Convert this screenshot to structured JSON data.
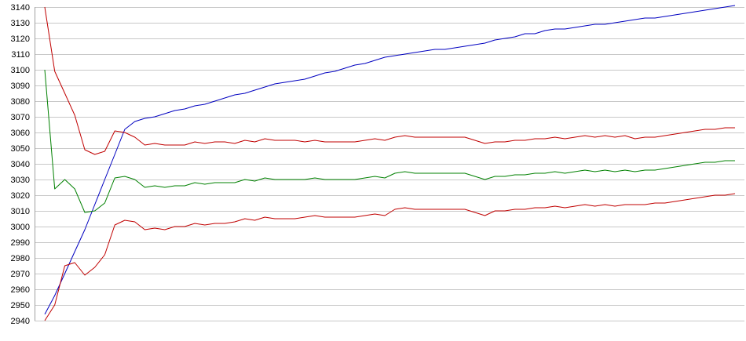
{
  "chart_data": {
    "type": "line",
    "title": "",
    "xlabel": "",
    "ylabel": "",
    "ylim": [
      2940,
      3140
    ],
    "yticks": [
      2940,
      2950,
      2960,
      2970,
      2980,
      2990,
      3000,
      3010,
      3020,
      3030,
      3040,
      3050,
      3060,
      3070,
      3080,
      3090,
      3100,
      3110,
      3120,
      3130,
      3140
    ],
    "grid": true,
    "legend": "none",
    "x": [
      0,
      1,
      2,
      3,
      4,
      5,
      6,
      7,
      8,
      9,
      10,
      11,
      12,
      13,
      14,
      15,
      16,
      17,
      18,
      19,
      20,
      21,
      22,
      23,
      24,
      25,
      26,
      27,
      28,
      29,
      30,
      31,
      32,
      33,
      34,
      35,
      36,
      37,
      38,
      39,
      40,
      41,
      42,
      43,
      44,
      45,
      46,
      47,
      48,
      49,
      50,
      51,
      52,
      53,
      54,
      55,
      56,
      57,
      58,
      59,
      60,
      61,
      62,
      63,
      64,
      65,
      66,
      67,
      68,
      69
    ],
    "series": [
      {
        "color": "#0000c0",
        "values": [
          2944,
          2956,
          2970,
          2984,
          2998,
          3014,
          3030,
          3046,
          3062,
          3067,
          3069,
          3070,
          3072,
          3074,
          3075,
          3077,
          3078,
          3080,
          3082,
          3084,
          3085,
          3087,
          3089,
          3091,
          3092,
          3093,
          3094,
          3096,
          3098,
          3099,
          3101,
          3103,
          3104,
          3106,
          3108,
          3109,
          3110,
          3111,
          3112,
          3113,
          3113,
          3114,
          3115,
          3116,
          3117,
          3119,
          3120,
          3121,
          3123,
          3123,
          3125,
          3126,
          3126,
          3127,
          3128,
          3129,
          3129,
          3130,
          3131,
          3132,
          3133,
          3133,
          3134,
          3135,
          3136,
          3137,
          3138,
          3139,
          3140,
          3141
        ]
      },
      {
        "color": "#c00000",
        "values": [
          3140,
          3099,
          3085,
          3071,
          3049,
          3046,
          3048,
          3061,
          3060,
          3057,
          3052,
          3053,
          3052,
          3052,
          3052,
          3054,
          3053,
          3054,
          3054,
          3053,
          3055,
          3054,
          3056,
          3055,
          3055,
          3055,
          3054,
          3055,
          3054,
          3054,
          3054,
          3054,
          3055,
          3056,
          3055,
          3057,
          3058,
          3057,
          3057,
          3057,
          3057,
          3057,
          3057,
          3055,
          3053,
          3054,
          3054,
          3055,
          3055,
          3056,
          3056,
          3057,
          3056,
          3057,
          3058,
          3057,
          3058,
          3057,
          3058,
          3056,
          3057,
          3057,
          3058,
          3059,
          3060,
          3061,
          3062,
          3062,
          3063,
          3063
        ]
      },
      {
        "color": "#008000",
        "values": [
          3100,
          3024,
          3030,
          3024,
          3009,
          3010,
          3015,
          3031,
          3032,
          3030,
          3025,
          3026,
          3025,
          3026,
          3026,
          3028,
          3027,
          3028,
          3028,
          3028,
          3030,
          3029,
          3031,
          3030,
          3030,
          3030,
          3030,
          3031,
          3030,
          3030,
          3030,
          3030,
          3031,
          3032,
          3031,
          3034,
          3035,
          3034,
          3034,
          3034,
          3034,
          3034,
          3034,
          3032,
          3030,
          3032,
          3032,
          3033,
          3033,
          3034,
          3034,
          3035,
          3034,
          3035,
          3036,
          3035,
          3036,
          3035,
          3036,
          3035,
          3036,
          3036,
          3037,
          3038,
          3039,
          3040,
          3041,
          3041,
          3042,
          3042
        ]
      },
      {
        "color": "#c00000",
        "values": [
          2940,
          2950,
          2975,
          2977,
          2969,
          2974,
          2982,
          3001,
          3004,
          3003,
          2998,
          2999,
          2998,
          3000,
          3000,
          3002,
          3001,
          3002,
          3002,
          3003,
          3005,
          3004,
          3006,
          3005,
          3005,
          3005,
          3006,
          3007,
          3006,
          3006,
          3006,
          3006,
          3007,
          3008,
          3007,
          3011,
          3012,
          3011,
          3011,
          3011,
          3011,
          3011,
          3011,
          3009,
          3007,
          3010,
          3010,
          3011,
          3011,
          3012,
          3012,
          3013,
          3012,
          3013,
          3014,
          3013,
          3014,
          3013,
          3014,
          3014,
          3014,
          3015,
          3015,
          3016,
          3017,
          3018,
          3019,
          3020,
          3020,
          3021
        ]
      }
    ]
  }
}
